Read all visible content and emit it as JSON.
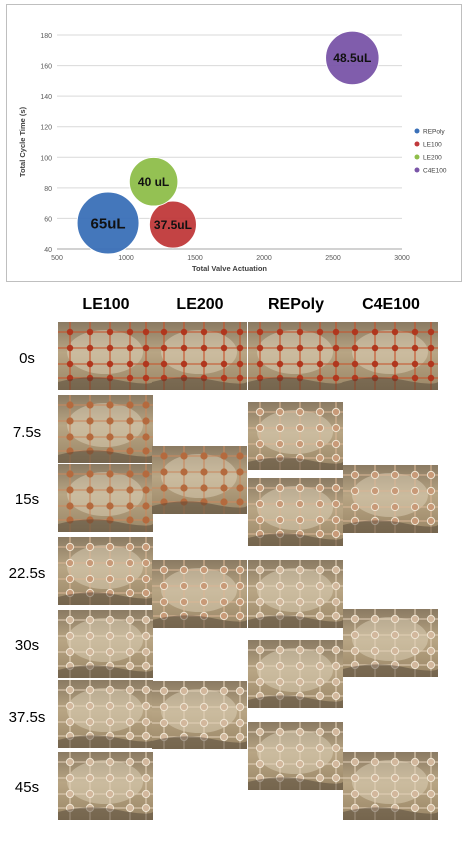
{
  "chart_data": {
    "type": "bubble",
    "xlabel": "Total Valve Actuation",
    "ylabel": "Total Cycle Time (s)",
    "xlim": [
      500,
      3000
    ],
    "ylim": [
      40,
      180
    ],
    "xticks": [
      500,
      1000,
      1500,
      2000,
      2500,
      3000
    ],
    "yticks": [
      40,
      60,
      80,
      100,
      120,
      140,
      160,
      180
    ],
    "grid": "horizontal",
    "legend_position": "right",
    "series": [
      {
        "name": "REPoly",
        "x": 870,
        "y": 57,
        "size": 65,
        "label": "65uL",
        "color": "#3a70b8"
      },
      {
        "name": "LE100",
        "x": 1340,
        "y": 56,
        "size": 37.5,
        "label": "37.5uL",
        "color": "#c0393b"
      },
      {
        "name": "LE200",
        "x": 1200,
        "y": 84,
        "size": 40,
        "label": "40 uL",
        "color": "#8fbe4a"
      },
      {
        "name": "C4E100",
        "x": 2640,
        "y": 165,
        "size": 48.5,
        "label": "48.5uL",
        "color": "#7a55a8"
      }
    ]
  },
  "grid_figure": {
    "columns": [
      "LE100",
      "LE200",
      "REPoly",
      "C4E100"
    ],
    "rows": [
      "0s",
      "7.5s",
      "15s",
      "22.5s",
      "30s",
      "37.5s",
      "45s"
    ]
  }
}
